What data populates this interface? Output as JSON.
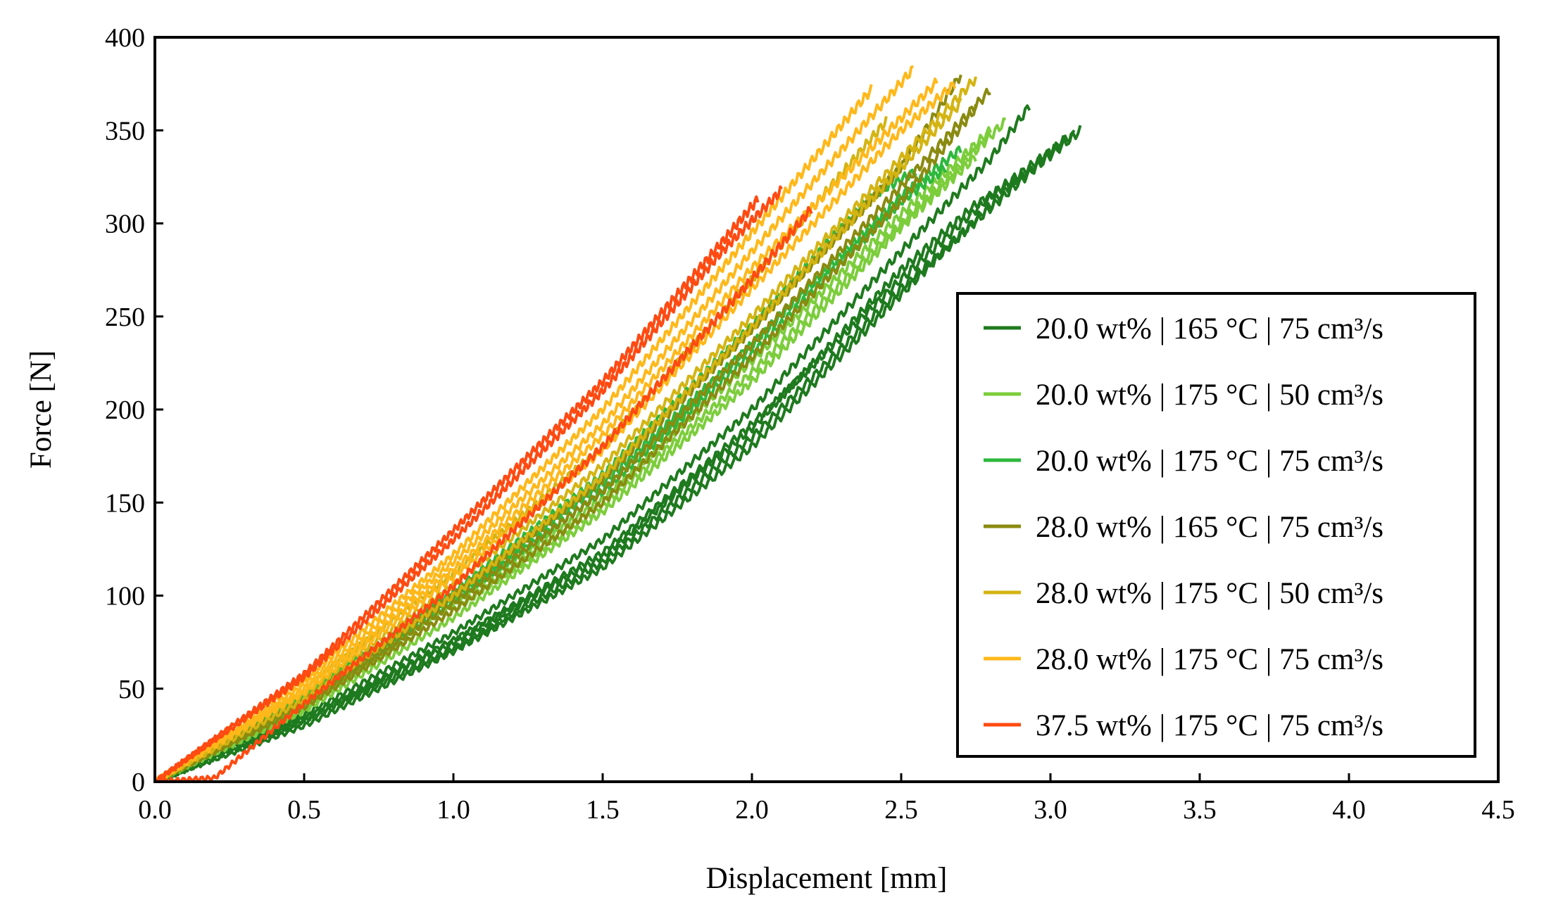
{
  "chart_data": {
    "type": "line",
    "title": "",
    "xlabel": "Displacement [mm]",
    "ylabel": "Force [N]",
    "xlim": [
      0,
      4.5
    ],
    "ylim": [
      0,
      400
    ],
    "xticks": [
      "0.0",
      "0.5",
      "1.0",
      "1.5",
      "2.0",
      "2.5",
      "3.0",
      "3.5",
      "4.0",
      "4.5"
    ],
    "yticks": [
      "0",
      "50",
      "100",
      "150",
      "200",
      "250",
      "300",
      "350",
      "400"
    ],
    "grid": false,
    "legend_position": "bottom-right",
    "series": [
      {
        "name": "20.0 wt% | 165 °C | 75 cm³/s",
        "color": "#1e7a1e",
        "curves": [
          {
            "x": [
              0,
              0.5,
              1.0,
              1.5,
              2.0,
              2.5,
              2.95,
              3.1
            ],
            "y": [
              0,
              32,
              72,
              118,
              185,
              265,
              330,
              350
            ]
          },
          {
            "x": [
              0,
              0.5,
              1.0,
              1.5,
              2.0,
              2.5,
              2.8,
              3.08
            ],
            "y": [
              0,
              34,
              76,
              123,
              192,
              270,
              315,
              348
            ]
          },
          {
            "x": [
              0,
              0.5,
              1.0,
              1.5,
              2.0,
              2.5,
              2.85,
              3.05
            ],
            "y": [
              0,
              30,
              70,
              115,
              180,
              262,
              318,
              345
            ]
          },
          {
            "x": [
              0,
              0.5,
              1.0,
              1.5,
              2.0,
              2.5,
              2.8,
              2.93
            ],
            "y": [
              0,
              36,
              80,
              130,
              200,
              285,
              335,
              363
            ]
          },
          {
            "x": [
              0,
              0.5,
              1.0,
              1.5,
              2.0,
              2.5,
              2.75,
              2.92
            ],
            "y": [
              0,
              33,
              75,
              121,
              190,
              275,
              310,
              326
            ]
          }
        ]
      },
      {
        "name": "20.0 wt% | 175 °C | 50 cm³/s",
        "color": "#7ccd3c",
        "curves": [
          {
            "x": [
              0,
              0.5,
              1.0,
              1.5,
              2.0,
              2.5,
              2.85
            ],
            "y": [
              0,
              40,
              92,
              148,
              220,
              300,
              355
            ]
          },
          {
            "x": [
              0,
              0.5,
              1.0,
              1.5,
              2.0,
              2.5,
              2.8
            ],
            "y": [
              0,
              42,
              95,
              152,
              226,
              305,
              350
            ]
          },
          {
            "x": [
              0,
              0.5,
              1.0,
              1.5,
              2.0,
              2.5,
              2.75
            ],
            "y": [
              0,
              38,
              88,
              145,
              215,
              298,
              336
            ]
          }
        ]
      },
      {
        "name": "20.0 wt% | 175 °C | 75 cm³/s",
        "color": "#2db83d",
        "curves": [
          {
            "x": [
              0,
              0.5,
              1.0,
              1.5,
              2.0,
              2.5,
              2.7
            ],
            "y": [
              0,
              45,
              100,
              160,
              235,
              315,
              340
            ]
          },
          {
            "x": [
              0,
              0.5,
              1.0,
              1.5,
              2.0,
              2.5,
              2.65
            ],
            "y": [
              0,
              43,
              97,
              156,
              230,
              312,
              330
            ]
          },
          {
            "x": [
              0,
              0.5,
              1.0,
              1.5,
              2.0,
              2.4,
              2.55
            ],
            "y": [
              0,
              46,
              102,
              165,
              245,
              315,
              328
            ]
          }
        ]
      },
      {
        "name": "28.0 wt% | 165 °C | 75 cm³/s",
        "color": "#8a8a10",
        "curves": [
          {
            "x": [
              0,
              0.5,
              1.0,
              1.5,
              2.0,
              2.5,
              2.8
            ],
            "y": [
              0,
              42,
              96,
              156,
              235,
              320,
              372
            ]
          },
          {
            "x": [
              0,
              0.5,
              1.0,
              1.5,
              2.0,
              2.5,
              2.7
            ],
            "y": [
              0,
              44,
              100,
              162,
              243,
              330,
              380
            ]
          },
          {
            "x": [
              0,
              0.5,
              1.0,
              1.5,
              2.0,
              2.5,
              2.75
            ],
            "y": [
              0,
              40,
              92,
              150,
              228,
              312,
              362
            ]
          }
        ]
      },
      {
        "name": "28.0 wt% | 175 °C | 50 cm³/s",
        "color": "#d4b413",
        "curves": [
          {
            "x": [
              0,
              0.5,
              1.0,
              1.5,
              2.0,
              2.5,
              2.75
            ],
            "y": [
              0,
              47,
              106,
              170,
              250,
              335,
              378
            ]
          },
          {
            "x": [
              0,
              0.5,
              1.0,
              1.5,
              2.0,
              2.45
            ],
            "y": [
              0,
              50,
              112,
              180,
              270,
              355
            ]
          },
          {
            "x": [
              0,
              0.5,
              1.0,
              1.5,
              2.0,
              2.5,
              2.7
            ],
            "y": [
              0,
              44,
              100,
              164,
              244,
              330,
              365
            ]
          }
        ]
      },
      {
        "name": "28.0 wt% | 175 °C | 75 cm³/s",
        "color": "#ffb81a",
        "curves": [
          {
            "x": [
              0,
              0.5,
              1.0,
              1.5,
              2.0,
              2.4
            ],
            "y": [
              0,
              55,
              122,
              200,
              295,
              372
            ]
          },
          {
            "x": [
              0,
              0.5,
              1.0,
              1.5,
              2.0,
              2.54
            ],
            "y": [
              0,
              52,
              118,
              192,
              285,
              383
            ]
          },
          {
            "x": [
              0,
              0.5,
              1.0,
              1.5,
              2.0,
              2.62
            ],
            "y": [
              0,
              50,
              114,
              186,
              276,
              376
            ]
          },
          {
            "x": [
              0,
              0.5,
              1.0,
              1.5,
              2.0,
              2.5,
              2.68
            ],
            "y": [
              0,
              48,
              110,
              178,
              265,
              350,
              375
            ]
          }
        ]
      },
      {
        "name": "37.5 wt% | 175 °C | 75 cm³/s",
        "color": "#ff4a12",
        "curves": [
          {
            "x": [
              0,
              0.5,
              1.0,
              1.5,
              1.9,
              2.1
            ],
            "y": [
              0,
              56,
              130,
              210,
              285,
              318
            ]
          },
          {
            "x": [
              0,
              0.5,
              1.0,
              1.5,
              1.9,
              2.02
            ],
            "y": [
              0,
              58,
              135,
              215,
              290,
              313
            ]
          },
          {
            "x": [
              0,
              0.2,
              0.5,
              1.0,
              1.5,
              2.0,
              2.2
            ],
            "y": [
              0,
              2,
              42,
              105,
              180,
              270,
              308
            ]
          }
        ]
      }
    ]
  }
}
